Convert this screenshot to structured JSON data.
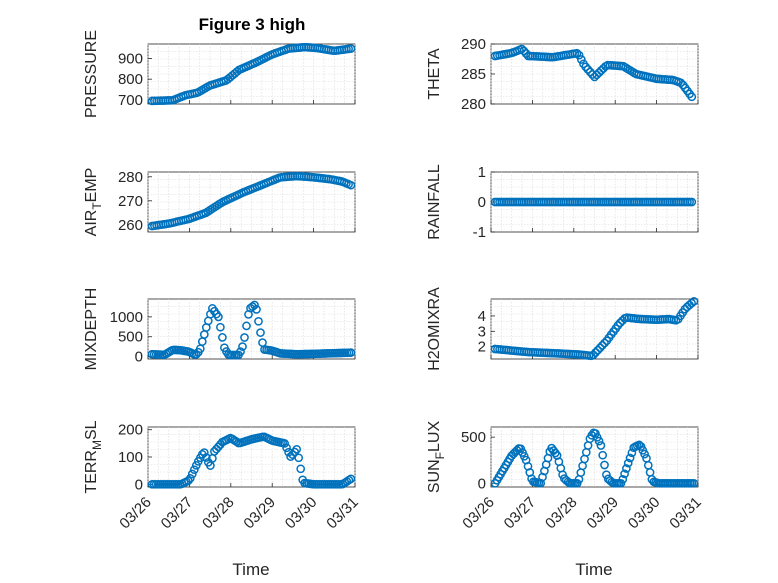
{
  "figure": {
    "title": "Figure 3 high",
    "marker_color": "#0072BD",
    "x_tick_labels": [
      "03/26",
      "03/27",
      "03/28",
      "03/29",
      "03/30",
      "03/31"
    ],
    "x_axis_label": "Time"
  },
  "chart_data": [
    {
      "type": "scatter",
      "name": "PRESSURE",
      "ylabel": "PRESSURE",
      "ylabel_sub": "",
      "title": "Figure 3 high",
      "xlabel": "",
      "xlim": [
        0,
        5
      ],
      "ylim": [
        680,
        970
      ],
      "yticks": [
        700,
        800,
        900
      ],
      "yticklabels": [
        "700",
        "800",
        "900"
      ],
      "grid": true,
      "x_start": 0.1,
      "x_end": 4.9,
      "n": 90,
      "anchors": [
        [
          0.1,
          695
        ],
        [
          0.6,
          698
        ],
        [
          0.9,
          722
        ],
        [
          1.2,
          735
        ],
        [
          1.5,
          770
        ],
        [
          1.9,
          795
        ],
        [
          2.2,
          845
        ],
        [
          2.6,
          880
        ],
        [
          3.0,
          920
        ],
        [
          3.4,
          948
        ],
        [
          3.8,
          955
        ],
        [
          4.1,
          950
        ],
        [
          4.5,
          937
        ],
        [
          4.9,
          948
        ]
      ],
      "values": []
    },
    {
      "type": "scatter",
      "name": "THETA",
      "ylabel": "THETA",
      "ylabel_sub": "",
      "xlim": [
        0,
        5
      ],
      "ylim": [
        280,
        290
      ],
      "yticks": [
        280,
        285,
        290
      ],
      "yticklabels": [
        "280",
        "285",
        "290"
      ],
      "grid": true,
      "x_start": 0.1,
      "x_end": 4.85,
      "n": 90,
      "anchors": [
        [
          0.1,
          288
        ],
        [
          0.5,
          288.5
        ],
        [
          0.75,
          289.2
        ],
        [
          0.9,
          288
        ],
        [
          1.5,
          287.8
        ],
        [
          2.1,
          288.5
        ],
        [
          2.25,
          286.5
        ],
        [
          2.5,
          284.5
        ],
        [
          2.8,
          286.5
        ],
        [
          3.2,
          286.3
        ],
        [
          3.5,
          285
        ],
        [
          4.0,
          284.2
        ],
        [
          4.4,
          284
        ],
        [
          4.6,
          283.5
        ],
        [
          4.85,
          281.2
        ]
      ],
      "values": []
    },
    {
      "type": "scatter",
      "name": "AIR_TEMP",
      "ylabel": "AIR",
      "ylabel_sub": "T",
      "ylabel_suffix": "EMP",
      "xlim": [
        0,
        5
      ],
      "ylim": [
        257,
        282
      ],
      "yticks": [
        260,
        270,
        280
      ],
      "yticklabels": [
        "260",
        "270",
        "280"
      ],
      "grid": true,
      "x_start": 0.1,
      "x_end": 4.9,
      "n": 90,
      "anchors": [
        [
          0.1,
          259.5
        ],
        [
          0.5,
          260.5
        ],
        [
          1.0,
          262.5
        ],
        [
          1.4,
          265
        ],
        [
          1.8,
          269.5
        ],
        [
          2.3,
          273.5
        ],
        [
          2.8,
          277
        ],
        [
          3.2,
          279.8
        ],
        [
          3.6,
          280.3
        ],
        [
          4.0,
          279.8
        ],
        [
          4.4,
          279
        ],
        [
          4.7,
          278
        ],
        [
          4.9,
          276.5
        ]
      ],
      "values": []
    },
    {
      "type": "scatter",
      "name": "RAINFALL",
      "ylabel": "RAINFALL",
      "ylabel_sub": "",
      "xlim": [
        0,
        5
      ],
      "ylim": [
        -1,
        1
      ],
      "yticks": [
        -1,
        0,
        1
      ],
      "yticklabels": [
        "-1",
        "0",
        "1"
      ],
      "grid": true,
      "x_start": 0.1,
      "x_end": 4.85,
      "n": 90,
      "anchors": [
        [
          0.1,
          0
        ],
        [
          4.85,
          0
        ]
      ],
      "values": []
    },
    {
      "type": "scatter",
      "name": "MIXDEPTH",
      "ylabel": "MIXDEPTH",
      "ylabel_sub": "",
      "xlim": [
        0,
        5
      ],
      "ylim": [
        -60,
        1450
      ],
      "yticks": [
        0,
        500,
        1000
      ],
      "yticklabels": [
        "0",
        "500",
        "1000"
      ],
      "grid": true,
      "x_start": 0.1,
      "x_end": 4.9,
      "n": 100,
      "anchors": [
        [
          0.1,
          60
        ],
        [
          0.4,
          45
        ],
        [
          0.6,
          170
        ],
        [
          0.8,
          160
        ],
        [
          1.0,
          120
        ],
        [
          1.15,
          40
        ],
        [
          1.25,
          150
        ],
        [
          1.4,
          700
        ],
        [
          1.55,
          1220
        ],
        [
          1.7,
          1000
        ],
        [
          1.85,
          200
        ],
        [
          1.95,
          40
        ],
        [
          2.2,
          40
        ],
        [
          2.3,
          300
        ],
        [
          2.45,
          1200
        ],
        [
          2.6,
          1320
        ],
        [
          2.7,
          700
        ],
        [
          2.8,
          180
        ],
        [
          3.0,
          150
        ],
        [
          3.2,
          80
        ],
        [
          3.6,
          60
        ],
        [
          4.0,
          70
        ],
        [
          4.9,
          100
        ]
      ],
      "values": []
    },
    {
      "type": "scatter",
      "name": "H2OMIXRA",
      "ylabel": "H2OMIXRA",
      "ylabel_sub": "",
      "xlim": [
        0,
        5
      ],
      "ylim": [
        1.2,
        5.1
      ],
      "yticks": [
        2,
        3,
        4
      ],
      "yticklabels": [
        "2",
        "3",
        "4"
      ],
      "grid": true,
      "x_start": 0.1,
      "x_end": 4.9,
      "n": 90,
      "anchors": [
        [
          0.1,
          1.85
        ],
        [
          0.5,
          1.75
        ],
        [
          0.9,
          1.65
        ],
        [
          1.3,
          1.6
        ],
        [
          1.7,
          1.55
        ],
        [
          2.1,
          1.5
        ],
        [
          2.45,
          1.4
        ],
        [
          2.8,
          2.4
        ],
        [
          3.1,
          3.5
        ],
        [
          3.25,
          3.9
        ],
        [
          3.6,
          3.8
        ],
        [
          4.0,
          3.75
        ],
        [
          4.3,
          3.8
        ],
        [
          4.5,
          3.7
        ],
        [
          4.7,
          4.5
        ],
        [
          4.9,
          4.95
        ]
      ],
      "values": []
    },
    {
      "type": "scatter",
      "name": "TERR_MSL",
      "ylabel": "TERR",
      "ylabel_sub": "M",
      "ylabel_suffix": "SL",
      "xlim": [
        0,
        5
      ],
      "ylim": [
        -10,
        210
      ],
      "yticks": [
        0,
        100,
        200
      ],
      "yticklabels": [
        "0",
        "100",
        "200"
      ],
      "grid": true,
      "x_start": 0.1,
      "x_end": 4.9,
      "n": 100,
      "anchors": [
        [
          0.1,
          0
        ],
        [
          0.8,
          0
        ],
        [
          1.0,
          15
        ],
        [
          1.2,
          80
        ],
        [
          1.35,
          120
        ],
        [
          1.5,
          65
        ],
        [
          1.6,
          120
        ],
        [
          1.8,
          155
        ],
        [
          2.0,
          170
        ],
        [
          2.2,
          150
        ],
        [
          2.5,
          165
        ],
        [
          2.8,
          175
        ],
        [
          3.0,
          160
        ],
        [
          3.3,
          150
        ],
        [
          3.45,
          100
        ],
        [
          3.6,
          130
        ],
        [
          3.75,
          5
        ],
        [
          4.0,
          0
        ],
        [
          4.7,
          0
        ],
        [
          4.9,
          20
        ]
      ],
      "values": []
    },
    {
      "type": "scatter",
      "name": "SUN_FLUX",
      "ylabel": "SUN",
      "ylabel_sub": "F",
      "ylabel_suffix": "LUX",
      "xlim": [
        0,
        5
      ],
      "ylim": [
        -40,
        610
      ],
      "yticks": [
        0,
        500
      ],
      "yticklabels": [
        "0",
        "500"
      ],
      "grid": true,
      "x_start": 0.1,
      "x_end": 4.9,
      "n": 110,
      "anchors": [
        [
          0.1,
          0
        ],
        [
          0.3,
          150
        ],
        [
          0.5,
          300
        ],
        [
          0.7,
          390
        ],
        [
          0.85,
          250
        ],
        [
          1.0,
          20
        ],
        [
          1.2,
          0
        ],
        [
          1.3,
          150
        ],
        [
          1.45,
          390
        ],
        [
          1.6,
          300
        ],
        [
          1.75,
          60
        ],
        [
          1.9,
          0
        ],
        [
          2.1,
          0
        ],
        [
          2.25,
          250
        ],
        [
          2.4,
          500
        ],
        [
          2.5,
          560
        ],
        [
          2.65,
          420
        ],
        [
          2.8,
          60
        ],
        [
          2.95,
          0
        ],
        [
          3.15,
          0
        ],
        [
          3.3,
          200
        ],
        [
          3.45,
          390
        ],
        [
          3.6,
          420
        ],
        [
          3.75,
          280
        ],
        [
          3.9,
          20
        ],
        [
          4.05,
          0
        ],
        [
          4.9,
          0
        ]
      ],
      "values": []
    }
  ]
}
